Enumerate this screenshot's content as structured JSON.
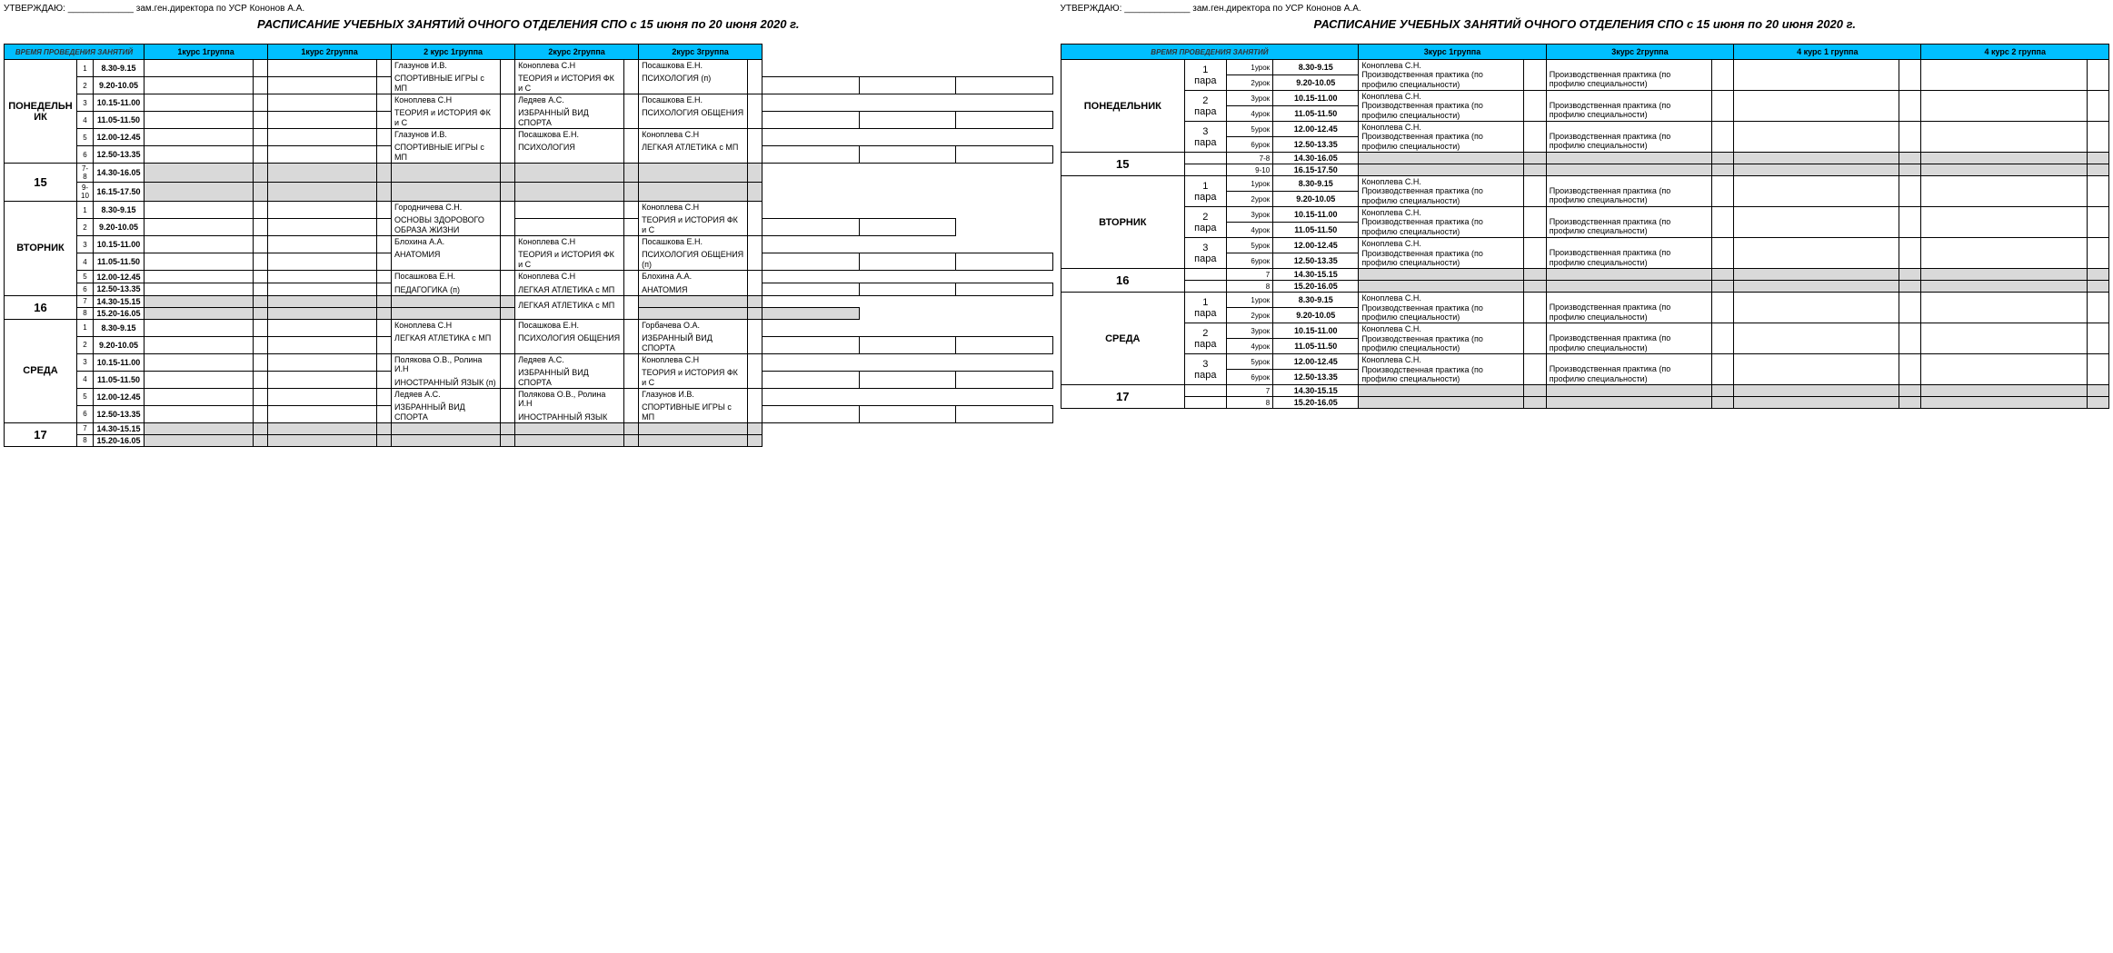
{
  "colors": {
    "header_bg": "#00bfff",
    "gray_bg": "#d9d9d9",
    "border": "#000000",
    "bg": "#ffffff"
  },
  "approve": "УТВЕРЖДАЮ: _____________ зам.ген.директора по УСР Кононов А.А.",
  "title": "РАСПИСАНИЕ УЧЕБНЫХ ЗАНЯТИЙ ОЧНОГО ОТДЕЛЕНИЯ СПО с 15 июня по 20 июня 2020 г.",
  "left": {
    "time_header": "ВРЕМЯ ПРОВЕДЕНИЯ ЗАНЯТИЙ",
    "groups": [
      "1курс 1группа",
      "1курс 2группа",
      "2 курс 1группа",
      "2курс 2группа",
      "2курс 3группа"
    ],
    "days": [
      {
        "name": "ПОНЕДЕЛЬНИК",
        "date": "15",
        "rows": [
          {
            "n": "1",
            "time": "8.30-9.15"
          },
          {
            "n": "2",
            "time": "9.20-10.05"
          },
          {
            "n": "3",
            "time": "10.15-11.00"
          },
          {
            "n": "4",
            "time": "11.05-11.50"
          },
          {
            "n": "5",
            "time": "12.00-12.45"
          },
          {
            "n": "6",
            "time": "12.50-13.35"
          },
          {
            "n": "7-8",
            "time": "14.30-16.05",
            "gray": true
          },
          {
            "n": "9-10",
            "time": "16.15-17.50",
            "gray": true
          }
        ],
        "blocks": [
          {
            "g": 2,
            "r": 0,
            "rs": 2,
            "t": "Глазунов И.В.",
            "s": "СПОРТИВНЫЕ ИГРЫ с МП"
          },
          {
            "g": 3,
            "r": 0,
            "rs": 2,
            "t": "Коноплева С.Н",
            "s": "ТЕОРИЯ и ИСТОРИЯ ФК и С"
          },
          {
            "g": 4,
            "r": 0,
            "rs": 2,
            "t": "Посашкова Е.Н.",
            "s": "ПСИХОЛОГИЯ (п)"
          },
          {
            "g": 2,
            "r": 2,
            "rs": 2,
            "t": "Коноплева С.Н",
            "s": "ТЕОРИЯ и ИСТОРИЯ ФК и С"
          },
          {
            "g": 3,
            "r": 2,
            "rs": 2,
            "t": "Ледяев А.С.",
            "s": "ИЗБРАННЫЙ ВИД СПОРТА"
          },
          {
            "g": 4,
            "r": 2,
            "rs": 2,
            "t": "Посашкова Е.Н.",
            "s": "ПСИХОЛОГИЯ ОБЩЕНИЯ"
          },
          {
            "g": 2,
            "r": 4,
            "rs": 2,
            "t": "Глазунов И.В.",
            "s": "СПОРТИВНЫЕ ИГРЫ с МП"
          },
          {
            "g": 3,
            "r": 4,
            "rs": 2,
            "t": "Посашкова Е.Н.",
            "s": "ПСИХОЛОГИЯ"
          },
          {
            "g": 4,
            "r": 4,
            "rs": 2,
            "t": "Коноплева С.Н",
            "s": "ЛЕГКАЯ АТЛЕТИКА с МП"
          }
        ]
      },
      {
        "name": "ВТОРНИК",
        "date": "16",
        "rows": [
          {
            "n": "1",
            "time": "8.30-9.15"
          },
          {
            "n": "2",
            "time": "9.20-10.05"
          },
          {
            "n": "3",
            "time": "10.15-11.00"
          },
          {
            "n": "4",
            "time": "11.05-11.50"
          },
          {
            "n": "5",
            "time": "12.00-12.45"
          },
          {
            "n": "6",
            "time": "12.50-13.35"
          },
          {
            "n": "7",
            "time": "14.30-15.15",
            "gray": true
          },
          {
            "n": "8",
            "time": "15.20-16.05",
            "gray": true
          }
        ],
        "blocks": [
          {
            "g": 2,
            "r": 0,
            "rs": 2,
            "t": "Городничева С.Н.",
            "s": "ОСНОВЫ ЗДОРОВОГО ОБРАЗА ЖИЗНИ"
          },
          {
            "g": 4,
            "r": 0,
            "rs": 2,
            "t": "Коноплева С.Н",
            "s": "ТЕОРИЯ и ИСТОРИЯ ФК и С"
          },
          {
            "g": 2,
            "r": 2,
            "rs": 2,
            "t": "Блохина А.А.",
            "s": "АНАТОМИЯ"
          },
          {
            "g": 3,
            "r": 2,
            "rs": 2,
            "t": "Коноплева С.Н",
            "s": "ТЕОРИЯ и ИСТОРИЯ ФК и С"
          },
          {
            "g": 4,
            "r": 2,
            "rs": 2,
            "t": "Посашкова Е.Н.",
            "s": "ПСИХОЛОГИЯ ОБЩЕНИЯ (п)"
          },
          {
            "g": 2,
            "r": 4,
            "rs": 2,
            "t": "Посашкова Е.Н.",
            "s": "ПЕДАГОГИКА (п)"
          },
          {
            "g": 3,
            "r": 4,
            "rs": 2,
            "t": "Коноплева С.Н",
            "s": "ЛЕГКАЯ АТЛЕТИКА с МП"
          },
          {
            "g": 4,
            "r": 4,
            "rs": 2,
            "t": "Блохина А.А.",
            "s": "АНАТОМИЯ"
          },
          {
            "g": 3,
            "r": 6,
            "rs": 2,
            "t": "",
            "s": "ЛЕГКАЯ АТЛЕТИКА с МП",
            "noGray": true
          }
        ]
      },
      {
        "name": "СРЕДА",
        "date": "17",
        "rows": [
          {
            "n": "1",
            "time": "8.30-9.15"
          },
          {
            "n": "2",
            "time": "9.20-10.05"
          },
          {
            "n": "3",
            "time": "10.15-11.00"
          },
          {
            "n": "4",
            "time": "11.05-11.50"
          },
          {
            "n": "5",
            "time": "12.00-12.45"
          },
          {
            "n": "6",
            "time": "12.50-13.35"
          },
          {
            "n": "7",
            "time": "14.30-15.15",
            "gray": true
          },
          {
            "n": "8",
            "time": "15.20-16.05",
            "gray": true
          }
        ],
        "blocks": [
          {
            "g": 2,
            "r": 0,
            "rs": 2,
            "t": "Коноплева С.Н",
            "s": "ЛЕГКАЯ АТЛЕТИКА с МП"
          },
          {
            "g": 3,
            "r": 0,
            "rs": 2,
            "t": "Посашкова Е.Н.",
            "s": "ПСИХОЛОГИЯ ОБЩЕНИЯ"
          },
          {
            "g": 4,
            "r": 0,
            "rs": 2,
            "t": "Горбачева О.А.",
            "s": "ИЗБРАННЫЙ ВИД СПОРТА"
          },
          {
            "g": 2,
            "r": 2,
            "rs": 2,
            "t": "Полякова О.В., Ролина И.Н",
            "s": "ИНОСТРАННЫЙ ЯЗЫК (п)"
          },
          {
            "g": 3,
            "r": 2,
            "rs": 2,
            "t": "Ледяев А.С.",
            "s": "ИЗБРАННЫЙ ВИД СПОРТА"
          },
          {
            "g": 4,
            "r": 2,
            "rs": 2,
            "t": "Коноплева С.Н",
            "s": "ТЕОРИЯ и ИСТОРИЯ ФК и С"
          },
          {
            "g": 2,
            "r": 4,
            "rs": 2,
            "t": "Ледяев А.С.",
            "s": "ИЗБРАННЫЙ ВИД СПОРТА"
          },
          {
            "g": 3,
            "r": 4,
            "rs": 2,
            "t": "Полякова О.В., Ролина И.Н",
            "s": "ИНОСТРАННЫЙ ЯЗЫК"
          },
          {
            "g": 4,
            "r": 4,
            "rs": 2,
            "t": "Глазунов И.В.",
            "s": "СПОРТИВНЫЕ ИГРЫ с МП"
          }
        ]
      }
    ]
  },
  "right": {
    "time_header": "ВРЕМЯ ПРОВЕДЕНИЯ ЗАНЯТИЙ",
    "groups": [
      "3курс 1группа",
      "3курс 2группа",
      "4 курс 1 группа",
      "4 курс 2 группа"
    ],
    "days": [
      {
        "name": "ПОНЕДЕЛЬНИК",
        "date": "15",
        "rows": [
          {
            "para": "1 пара",
            "urok": "1урок",
            "time": "8.30-9.15"
          },
          {
            "urok": "2урок",
            "time": "9.20-10.05"
          },
          {
            "para": "2 пара",
            "urok": "3урок",
            "time": "10.15-11.00"
          },
          {
            "urok": "4урок",
            "time": "11.05-11.50"
          },
          {
            "para": "3 пара",
            "urok": "5урок",
            "time": "12.00-12.45"
          },
          {
            "urok": "6урок",
            "time": "12.50-13.35"
          },
          {
            "urok": "7-8",
            "time": "14.30-16.05",
            "gray": true,
            "noPara": true
          },
          {
            "urok": "9-10",
            "time": "16.15-17.50",
            "gray": true,
            "noPara": true
          }
        ]
      },
      {
        "name": "ВТОРНИК",
        "date": "16",
        "rows": [
          {
            "para": "1 пара",
            "urok": "1урок",
            "time": "8.30-9.15"
          },
          {
            "urok": "2урок",
            "time": "9.20-10.05"
          },
          {
            "para": "2 пара",
            "urok": "3урок",
            "time": "10.15-11.00"
          },
          {
            "urok": "4урок",
            "time": "11.05-11.50"
          },
          {
            "para": "3 пара",
            "urok": "5урок",
            "time": "12.00-12.45"
          },
          {
            "urok": "6урок",
            "time": "12.50-13.35"
          },
          {
            "urok": "7",
            "time": "14.30-15.15",
            "gray": true,
            "noPara": true
          },
          {
            "urok": "8",
            "time": "15.20-16.05",
            "gray": true,
            "noPara": true
          }
        ]
      },
      {
        "name": "СРЕДА",
        "date": "17",
        "rows": [
          {
            "para": "1 пара",
            "urok": "1урок",
            "time": "8.30-9.15"
          },
          {
            "urok": "2урок",
            "time": "9.20-10.05"
          },
          {
            "para": "2 пара",
            "urok": "3урок",
            "time": "10.15-11.00"
          },
          {
            "urok": "4урок",
            "time": "11.05-11.50"
          },
          {
            "para": "3 пара",
            "urok": "5урок",
            "time": "12.00-12.45"
          },
          {
            "urok": "6урок",
            "time": "12.50-13.35"
          },
          {
            "urok": "7",
            "time": "14.30-15.15",
            "gray": true,
            "noPara": true
          },
          {
            "urok": "8",
            "time": "15.20-16.05",
            "gray": true,
            "noPara": true
          }
        ]
      }
    ],
    "cell_3g1_t": "Коноплева С.Н.",
    "cell_3g1_s": "Производственная практика (по профилю специальности)",
    "cell_3g2_s": "Производственная практика (по профилю специальности)"
  }
}
